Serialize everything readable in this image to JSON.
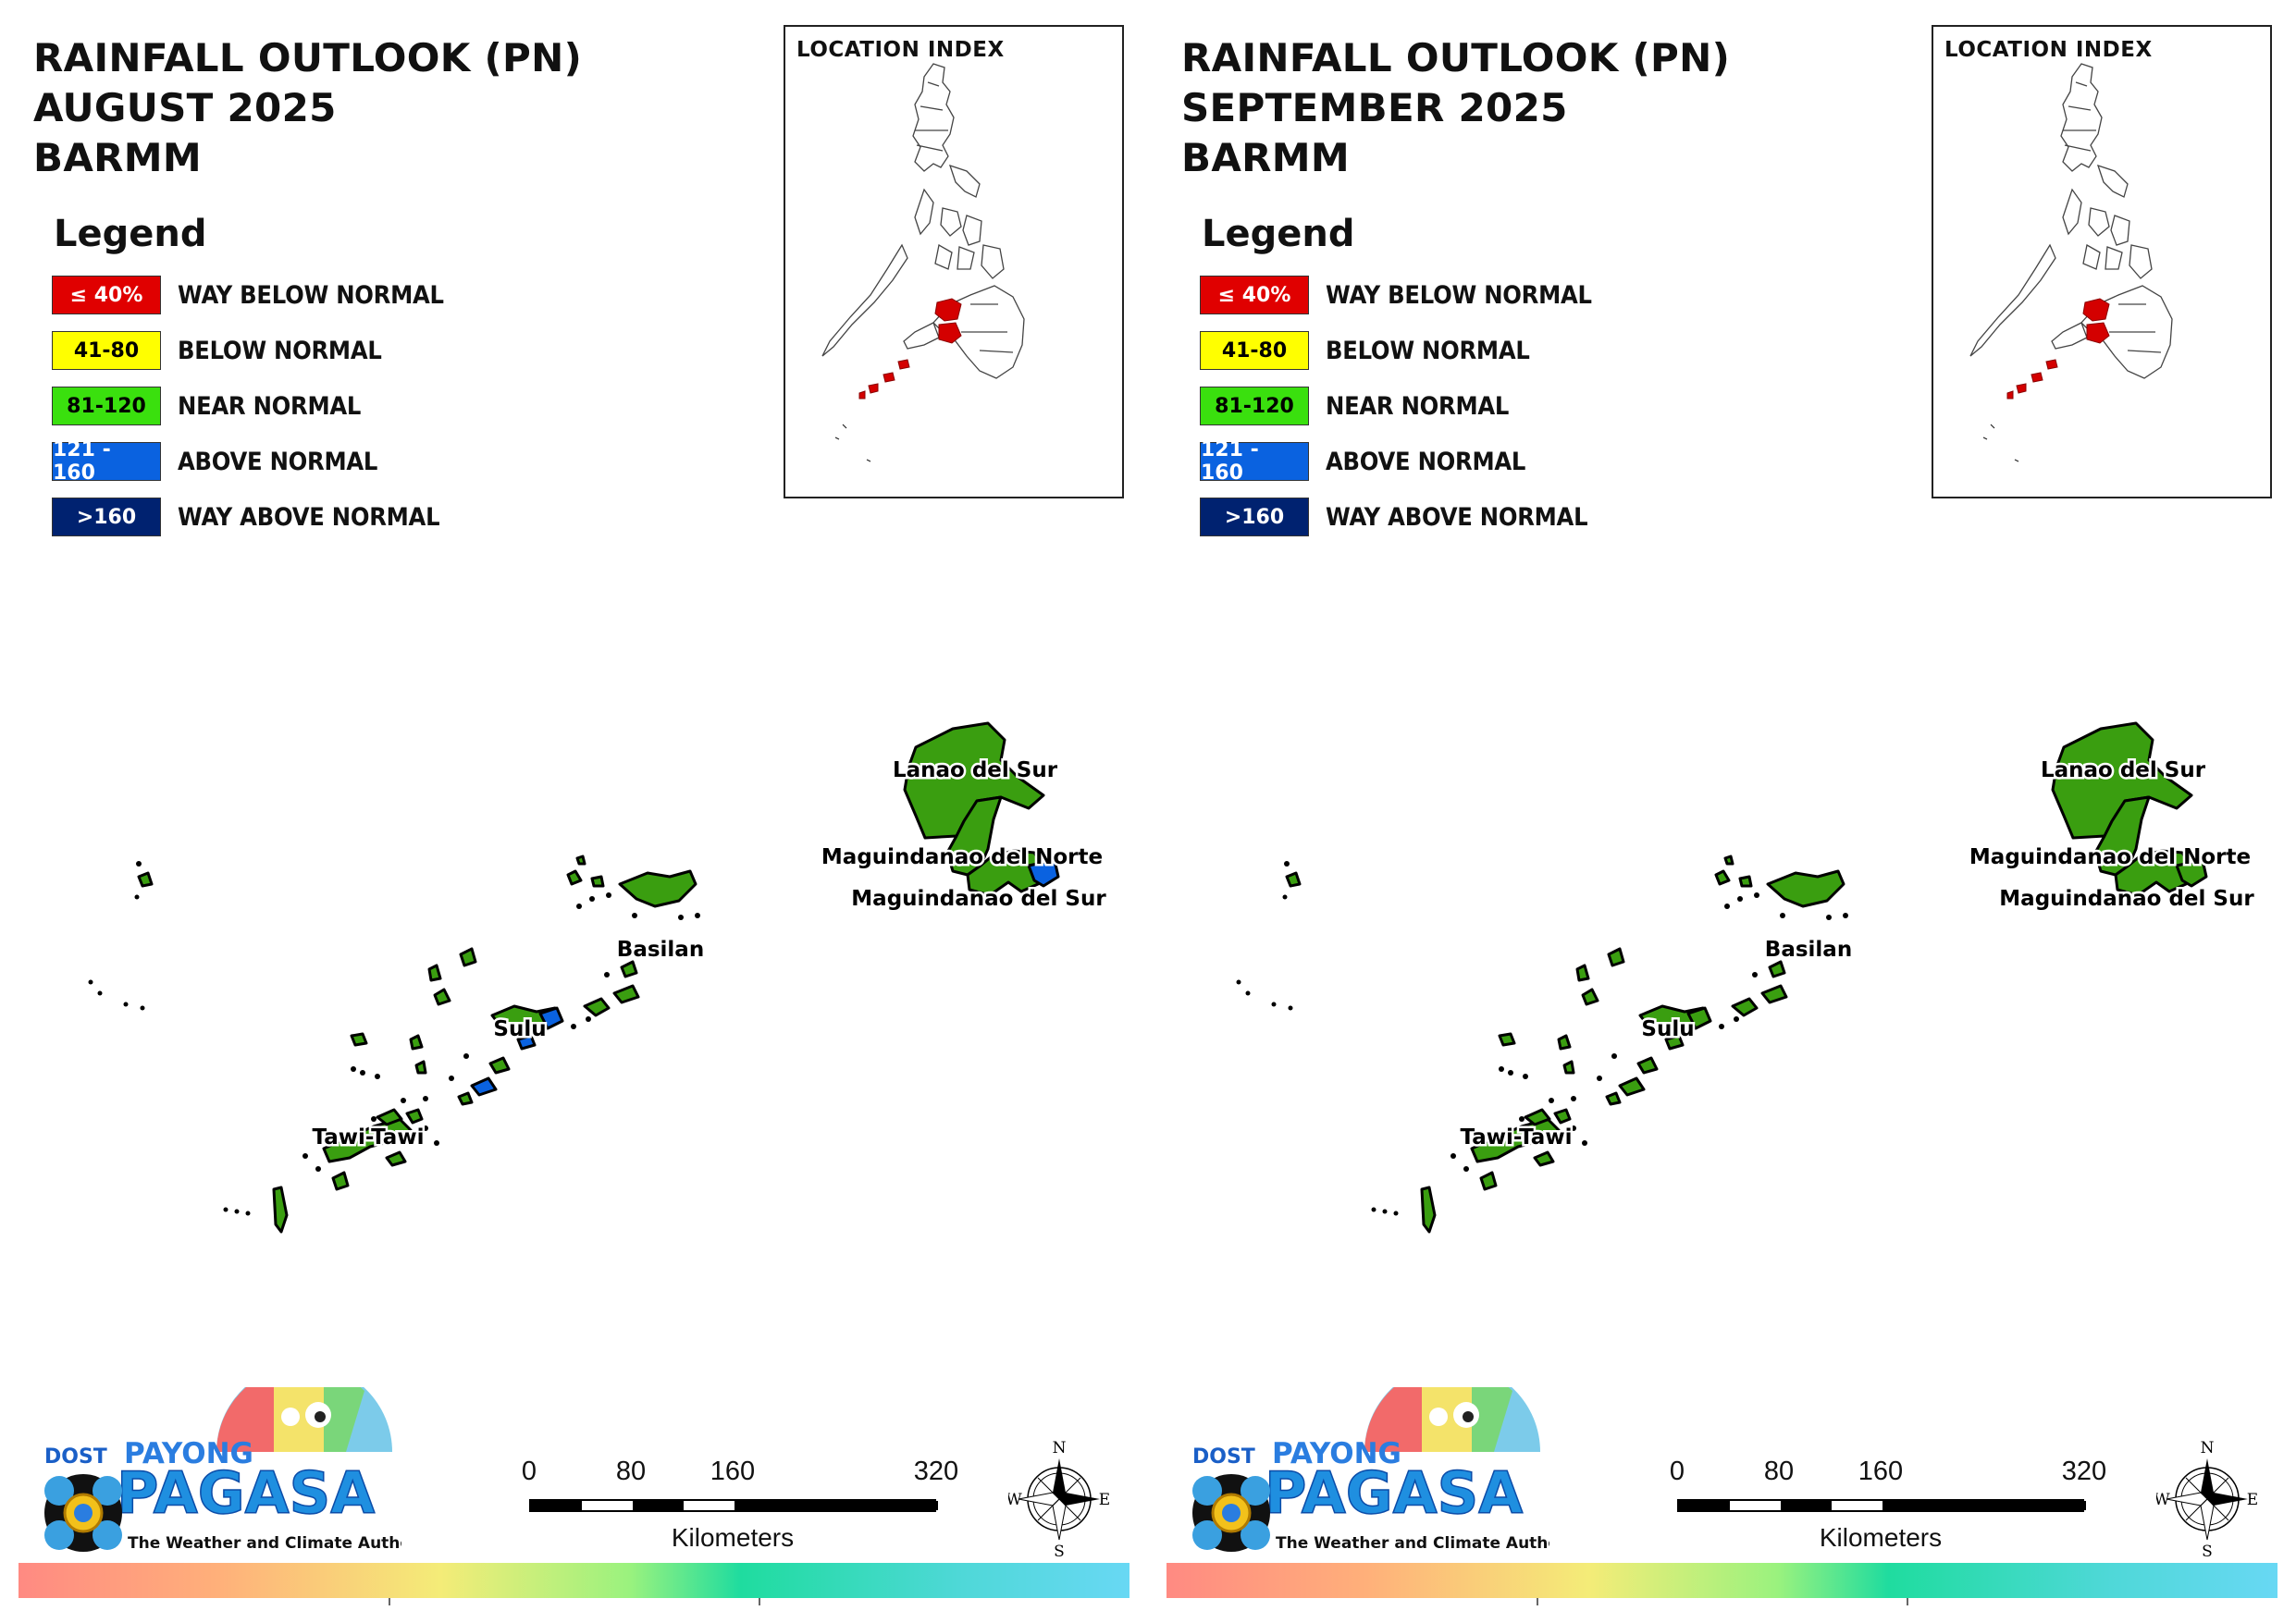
{
  "panels": [
    {
      "id": "left",
      "title_lines": [
        "RAINFALL OUTLOOK (PN)",
        "AUGUST 2025",
        "BARMM"
      ],
      "legend_title": "Legend",
      "legend": [
        {
          "swatch": "≤ 40%",
          "label": "WAY BELOW NORMAL",
          "color": "#e00000",
          "text_color": "#ffffff"
        },
        {
          "swatch": "41-80",
          "label": "BELOW NORMAL",
          "color": "#ffff00",
          "text_color": "#000000"
        },
        {
          "swatch": "81-120",
          "label": "NEAR NORMAL",
          "color": "#3ae00e",
          "text_color": "#000000"
        },
        {
          "swatch": "121 - 160",
          "label": "ABOVE NORMAL",
          "color": "#0a62e0",
          "text_color": "#ffffff"
        },
        {
          "swatch": ">160",
          "label": "WAY ABOVE NORMAL",
          "color": "#002270",
          "text_color": "#ffffff"
        }
      ],
      "location_index_title": "LOCATION INDEX",
      "provinces": [
        {
          "name": "Lanao del Sur",
          "category": "NEAR NORMAL"
        },
        {
          "name": "Maguindanao del Norte",
          "category": "NEAR NORMAL"
        },
        {
          "name": "Maguindanao del Sur",
          "category": "NEAR NORMAL",
          "partial_category": "ABOVE NORMAL"
        },
        {
          "name": "Basilan",
          "category": "NEAR NORMAL"
        },
        {
          "name": "Sulu",
          "category": "NEAR NORMAL",
          "partial_category": "ABOVE NORMAL"
        },
        {
          "name": "Tawi-Tawi",
          "category": "NEAR NORMAL"
        }
      ],
      "colors": {
        "near_normal": "#3a9e10",
        "above_normal": "#0a62e0"
      },
      "scale": {
        "ticks": [
          "0",
          "80",
          "160",
          "320"
        ],
        "unit": "Kilometers"
      },
      "compass": {
        "n": "N",
        "s": "S",
        "e": "E",
        "w": "W"
      },
      "logo": {
        "dost": "DOST",
        "payong": "PAYONG",
        "pagasa": "PAGASA",
        "tagline": "The Weather and Climate Authority"
      }
    },
    {
      "id": "right",
      "title_lines": [
        "RAINFALL OUTLOOK (PN)",
        "SEPTEMBER 2025",
        "BARMM"
      ],
      "legend_title": "Legend",
      "legend": [
        {
          "swatch": "≤ 40%",
          "label": "WAY BELOW NORMAL",
          "color": "#e00000",
          "text_color": "#ffffff"
        },
        {
          "swatch": "41-80",
          "label": "BELOW NORMAL",
          "color": "#ffff00",
          "text_color": "#000000"
        },
        {
          "swatch": "81-120",
          "label": "NEAR NORMAL",
          "color": "#3ae00e",
          "text_color": "#000000"
        },
        {
          "swatch": "121 - 160",
          "label": "ABOVE NORMAL",
          "color": "#0a62e0",
          "text_color": "#ffffff"
        },
        {
          "swatch": ">160",
          "label": "WAY ABOVE NORMAL",
          "color": "#002270",
          "text_color": "#ffffff"
        }
      ],
      "location_index_title": "LOCATION INDEX",
      "provinces": [
        {
          "name": "Lanao del Sur",
          "category": "NEAR NORMAL"
        },
        {
          "name": "Maguindanao del Norte",
          "category": "NEAR NORMAL"
        },
        {
          "name": "Maguindanao del Sur",
          "category": "NEAR NORMAL"
        },
        {
          "name": "Basilan",
          "category": "NEAR NORMAL"
        },
        {
          "name": "Sulu",
          "category": "NEAR NORMAL"
        },
        {
          "name": "Tawi-Tawi",
          "category": "NEAR NORMAL"
        }
      ],
      "colors": {
        "near_normal": "#3a9e10",
        "above_normal": "#3a9e10"
      },
      "scale": {
        "ticks": [
          "0",
          "80",
          "160",
          "320"
        ],
        "unit": "Kilometers"
      },
      "compass": {
        "n": "N",
        "s": "S",
        "e": "E",
        "w": "W"
      },
      "logo": {
        "dost": "DOST",
        "payong": "PAYONG",
        "pagasa": "PAGASA",
        "tagline": "The Weather and Climate Authority"
      }
    }
  ]
}
